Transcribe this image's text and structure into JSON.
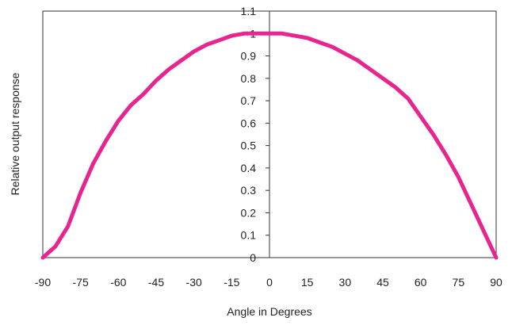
{
  "chart_data": {
    "type": "line",
    "title": "",
    "xlabel": "Angle in Degrees",
    "ylabel": "Relative output response",
    "xlim": [
      -90,
      90
    ],
    "ylim": [
      0,
      1.1
    ],
    "x_ticks": [
      -90,
      -75,
      -60,
      -45,
      -30,
      -15,
      0,
      15,
      30,
      45,
      60,
      75,
      90
    ],
    "x_tick_labels": [
      "-90",
      "-75",
      "-60",
      "-45",
      "-30",
      "-15",
      "0",
      "15",
      "30",
      "45",
      "60",
      "75",
      "90"
    ],
    "y_ticks": [
      0,
      0.1,
      0.2,
      0.3,
      0.4,
      0.5,
      0.6,
      0.7,
      0.8,
      0.9,
      1,
      1.1
    ],
    "y_tick_labels": [
      "0",
      "0.1",
      "0.2",
      "0.3",
      "0.4",
      "0.5",
      "0.6",
      "0.7",
      "0.8",
      "0.9",
      "1",
      "1.1"
    ],
    "grid": false,
    "legend": "none",
    "series": [
      {
        "color": "#e8258e",
        "x": [
          -90,
          -85,
          -80,
          -75,
          -70,
          -65,
          -60,
          -55,
          -50,
          -45,
          -40,
          -35,
          -30,
          -25,
          -20,
          -15,
          -10,
          -5,
          0,
          5,
          10,
          15,
          20,
          25,
          30,
          35,
          40,
          45,
          50,
          55,
          60,
          65,
          70,
          75,
          80,
          85,
          90
        ],
        "y": [
          0,
          0.05,
          0.14,
          0.29,
          0.42,
          0.52,
          0.61,
          0.68,
          0.73,
          0.79,
          0.84,
          0.88,
          0.92,
          0.95,
          0.97,
          0.99,
          1.0,
          1.0,
          1.0,
          1.0,
          0.99,
          0.98,
          0.96,
          0.94,
          0.91,
          0.88,
          0.84,
          0.8,
          0.76,
          0.71,
          0.63,
          0.55,
          0.46,
          0.36,
          0.24,
          0.12,
          0
        ]
      }
    ]
  }
}
